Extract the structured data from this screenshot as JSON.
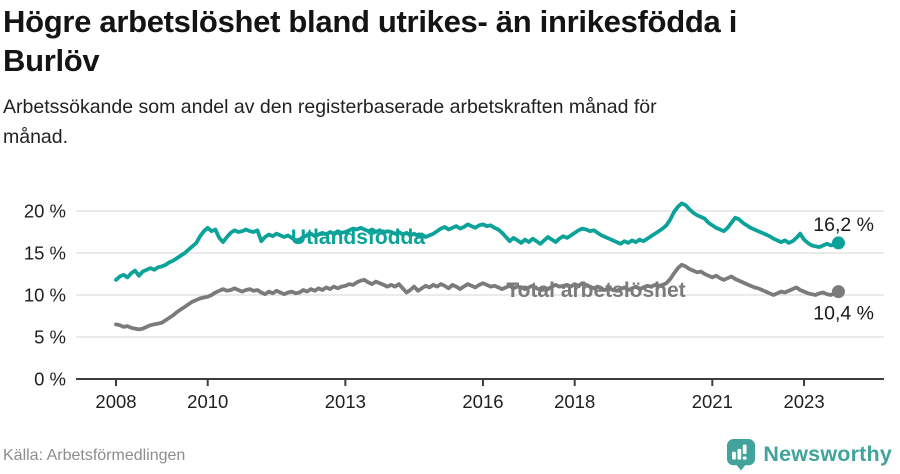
{
  "header": {
    "title_lines": [
      "Högre arbetslöshet bland utrikes- än inrikesfödda i",
      "Burlöv"
    ],
    "subtitle_lines": [
      "Arbetssökande som andel av den registerbaserade arbetskraften månad för",
      "månad."
    ]
  },
  "chart_data": {
    "type": "line",
    "title": "Högre arbetslöshet bland utrikes- än inrikesfödda i Burlöv",
    "subtitle": "Arbetssökande som andel av den registerbaserade arbetskraften månad för månad.",
    "x_start": "2008-01",
    "x_end": "2023-10",
    "x_frequency": "monthly",
    "ylim": [
      0,
      22
    ],
    "grid": "horizontal",
    "legend_position": "inline-labels",
    "yticks": [
      {
        "value": 0,
        "label": "0 %"
      },
      {
        "value": 5,
        "label": "5 %"
      },
      {
        "value": 10,
        "label": "10 %"
      },
      {
        "value": 15,
        "label": "15 %"
      },
      {
        "value": 20,
        "label": "20 %"
      }
    ],
    "xticks": [
      {
        "year": 2008,
        "label": "2008"
      },
      {
        "year": 2010,
        "label": "2010"
      },
      {
        "year": 2013,
        "label": "2013"
      },
      {
        "year": 2016,
        "label": "2016"
      },
      {
        "year": 2018,
        "label": "2018"
      },
      {
        "year": 2021,
        "label": "2021"
      },
      {
        "year": 2023,
        "label": "2023"
      }
    ],
    "series": [
      {
        "name": "Utlandsfödda",
        "color": "#0ba29a",
        "end_value": 16.2,
        "end_value_label": "16,2 %",
        "values": [
          11.8,
          12.2,
          12.4,
          12.1,
          12.6,
          12.9,
          12.3,
          12.8,
          13.0,
          13.2,
          13.0,
          13.3,
          13.4,
          13.6,
          13.9,
          14.1,
          14.4,
          14.7,
          15.0,
          15.4,
          15.8,
          16.2,
          17.0,
          17.6,
          18.0,
          17.6,
          17.8,
          16.8,
          16.3,
          16.9,
          17.4,
          17.7,
          17.5,
          17.6,
          17.8,
          17.6,
          17.5,
          17.7,
          16.4,
          16.9,
          17.2,
          17.0,
          17.3,
          17.1,
          16.9,
          17.1,
          16.8,
          16.5,
          16.6,
          16.9,
          17.1,
          17.3,
          17.0,
          17.2,
          17.4,
          17.2,
          17.5,
          17.3,
          17.6,
          17.4,
          17.5,
          17.7,
          17.9,
          17.8,
          18.0,
          17.8,
          17.6,
          17.8,
          17.5,
          17.7,
          17.4,
          17.6,
          17.5,
          17.3,
          17.5,
          17.2,
          17.4,
          17.1,
          17.3,
          17.0,
          17.2,
          16.9,
          17.1,
          17.3,
          17.6,
          17.9,
          18.1,
          17.8,
          18.0,
          18.2,
          17.9,
          18.1,
          18.4,
          18.2,
          18.0,
          18.3,
          18.4,
          18.2,
          18.3,
          18.0,
          17.8,
          17.4,
          16.9,
          16.4,
          16.8,
          16.5,
          16.2,
          16.6,
          16.3,
          16.7,
          16.4,
          16.1,
          16.5,
          16.9,
          16.6,
          16.3,
          16.7,
          17.0,
          16.8,
          17.1,
          17.4,
          17.7,
          17.9,
          17.8,
          17.6,
          17.7,
          17.4,
          17.1,
          16.9,
          16.7,
          16.5,
          16.3,
          16.1,
          16.4,
          16.2,
          16.5,
          16.3,
          16.6,
          16.4,
          16.7,
          17.0,
          17.3,
          17.6,
          17.9,
          18.3,
          19.0,
          19.9,
          20.5,
          20.9,
          20.7,
          20.2,
          19.8,
          19.5,
          19.3,
          19.1,
          18.6,
          18.3,
          18.0,
          17.8,
          17.6,
          18.0,
          18.6,
          19.2,
          19.0,
          18.6,
          18.3,
          18.0,
          17.8,
          17.6,
          17.4,
          17.2,
          17.0,
          16.7,
          16.5,
          16.3,
          16.5,
          16.2,
          16.4,
          16.8,
          17.3,
          16.6,
          16.2,
          15.9,
          15.8,
          15.7,
          15.9,
          16.1,
          15.9,
          16.0,
          16.2
        ]
      },
      {
        "name": "Total arbetslöshet",
        "color": "#7b7b7b",
        "end_value": 10.4,
        "end_value_label": "10,4 %",
        "values": [
          6.5,
          6.4,
          6.2,
          6.3,
          6.1,
          6.0,
          5.9,
          6.0,
          6.2,
          6.4,
          6.5,
          6.6,
          6.7,
          7.0,
          7.3,
          7.6,
          8.0,
          8.3,
          8.6,
          8.9,
          9.2,
          9.4,
          9.6,
          9.7,
          9.8,
          10.0,
          10.3,
          10.5,
          10.7,
          10.5,
          10.6,
          10.8,
          10.6,
          10.4,
          10.6,
          10.7,
          10.5,
          10.6,
          10.3,
          10.1,
          10.4,
          10.2,
          10.5,
          10.3,
          10.1,
          10.3,
          10.4,
          10.2,
          10.3,
          10.6,
          10.4,
          10.7,
          10.5,
          10.8,
          10.6,
          10.9,
          10.7,
          11.0,
          10.8,
          11.0,
          11.1,
          11.3,
          11.2,
          11.5,
          11.7,
          11.8,
          11.5,
          11.3,
          11.6,
          11.4,
          11.2,
          11.0,
          11.2,
          11.0,
          11.3,
          10.8,
          10.3,
          10.6,
          11.0,
          10.5,
          10.8,
          11.1,
          10.9,
          11.2,
          11.0,
          11.3,
          11.1,
          10.8,
          11.2,
          11.0,
          10.7,
          11.0,
          11.3,
          11.1,
          10.9,
          11.2,
          11.4,
          11.2,
          11.0,
          11.1,
          10.9,
          10.7,
          10.9,
          11.1,
          10.8,
          11.0,
          10.9,
          10.7,
          10.9,
          11.1,
          10.8,
          10.6,
          10.9,
          10.7,
          11.0,
          11.2,
          11.0,
          11.1,
          11.2,
          11.0,
          11.3,
          11.1,
          11.4,
          11.2,
          11.0,
          10.8,
          11.0,
          10.7,
          10.6,
          10.8,
          10.6,
          10.5,
          10.7,
          10.9,
          10.6,
          10.8,
          11.0,
          10.7,
          10.9,
          11.1,
          11.0,
          11.2,
          11.1,
          11.2,
          11.4,
          11.9,
          12.6,
          13.2,
          13.6,
          13.4,
          13.1,
          12.9,
          12.7,
          12.8,
          12.5,
          12.3,
          12.1,
          12.3,
          12.0,
          11.8,
          12.0,
          12.2,
          11.9,
          11.7,
          11.5,
          11.3,
          11.1,
          10.9,
          10.8,
          10.6,
          10.4,
          10.2,
          10.0,
          10.2,
          10.4,
          10.3,
          10.5,
          10.7,
          10.9,
          10.6,
          10.4,
          10.2,
          10.1,
          10.0,
          10.2,
          10.3,
          10.1,
          10.0,
          10.2,
          10.4
        ]
      }
    ]
  },
  "footer": {
    "source": "Källa: Arbetsförmedlingen",
    "logo_text": "Newsworthy"
  },
  "colors": {
    "series_foreign_born": "#0ba29a",
    "series_total": "#7b7b7b",
    "gridline": "#dedede",
    "axis": "#3d3d3d",
    "tick_text": "#1f1f1f",
    "value_label_text": "#1a1a1a",
    "logo_teal": "#41a39c",
    "source_text": "#8d8d8d"
  }
}
